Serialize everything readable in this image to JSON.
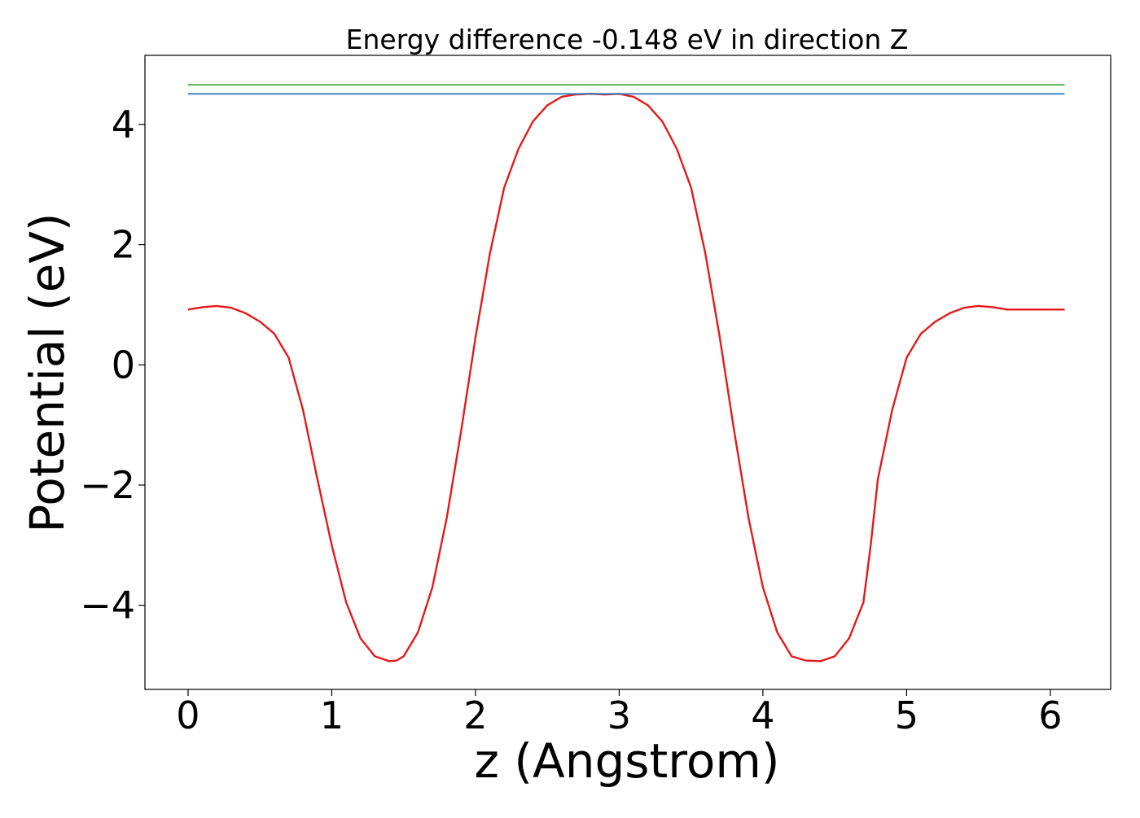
{
  "chart_data": {
    "type": "line",
    "title": "Energy difference -0.148 eV in direction Z",
    "xlabel": "z (Angstrom)",
    "ylabel": "Potential (eV)",
    "xlim": [
      -0.3,
      6.42
    ],
    "ylim": [
      -5.4,
      5.15
    ],
    "x_ticks": [
      0,
      1,
      2,
      3,
      4,
      5,
      6
    ],
    "x_tick_labels": [
      "0",
      "1",
      "2",
      "3",
      "4",
      "5",
      "6"
    ],
    "y_ticks": [
      -4,
      -2,
      0,
      2,
      4
    ],
    "y_tick_labels": [
      "−4",
      "−2",
      "0",
      "2",
      "4"
    ],
    "grid": false,
    "legend": "none",
    "series": [
      {
        "color": "#e41a1c",
        "x": [
          0.0,
          0.1,
          0.2,
          0.3,
          0.4,
          0.5,
          0.6,
          0.7,
          0.8,
          0.9,
          1.0,
          1.1,
          1.2,
          1.3,
          1.4,
          1.45,
          1.5,
          1.6,
          1.7,
          1.8,
          1.9,
          2.0,
          2.1,
          2.2,
          2.3,
          2.4,
          2.5,
          2.6,
          2.7,
          2.8,
          2.9,
          3.0,
          3.1,
          3.2,
          3.3,
          3.4,
          3.5,
          3.6,
          3.7,
          3.8,
          3.9,
          4.0,
          4.1,
          4.2,
          4.3,
          4.4,
          4.5,
          4.6,
          4.7,
          4.75,
          4.8,
          4.9,
          5.0,
          5.1,
          5.2,
          5.3,
          5.4,
          5.5,
          5.6,
          5.7,
          5.8,
          5.9,
          6.0,
          6.1
        ],
        "y": [
          0.92,
          0.96,
          0.98,
          0.95,
          0.86,
          0.72,
          0.52,
          0.12,
          -0.75,
          -1.9,
          -3.0,
          -3.95,
          -4.55,
          -4.85,
          -4.93,
          -4.92,
          -4.85,
          -4.45,
          -3.7,
          -2.55,
          -1.1,
          0.45,
          1.85,
          2.95,
          3.6,
          4.05,
          4.32,
          4.46,
          4.5,
          4.51,
          4.5,
          4.51,
          4.46,
          4.32,
          4.05,
          3.6,
          2.95,
          1.85,
          0.45,
          -1.1,
          -2.55,
          -3.7,
          -4.45,
          -4.85,
          -4.92,
          -4.93,
          -4.85,
          -4.55,
          -3.95,
          -3.0,
          -1.9,
          -0.75,
          0.12,
          0.52,
          0.72,
          0.86,
          0.95,
          0.98,
          0.96,
          0.92,
          0.92,
          0.92,
          0.92,
          0.92
        ]
      },
      {
        "color": "#4daf4a",
        "x": [
          0.0,
          6.1
        ],
        "y": [
          4.66,
          4.66
        ]
      },
      {
        "color": "#377eb8",
        "x": [
          0.0,
          6.1
        ],
        "y": [
          4.51,
          4.51
        ]
      }
    ]
  }
}
